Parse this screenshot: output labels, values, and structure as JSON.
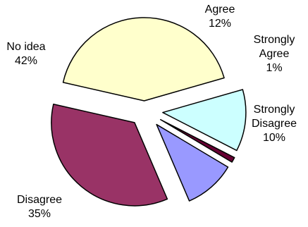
{
  "chart_data": {
    "type": "pie",
    "exploded": true,
    "slices": [
      {
        "label_lines": [
          "Agree",
          "12%"
        ],
        "percent": 12,
        "color": "#ccffff"
      },
      {
        "label_lines": [
          "Strongly",
          "Agree",
          "1%"
        ],
        "percent": 1,
        "color": "#660033"
      },
      {
        "label_lines": [
          "Strongly",
          "Disagree",
          "10%"
        ],
        "percent": 10,
        "color": "#9999ff"
      },
      {
        "label_lines": [
          "Disagree",
          "35%"
        ],
        "percent": 35,
        "color": "#993366"
      },
      {
        "label_lines": [
          "No idea",
          "42%"
        ],
        "percent": 42,
        "color": "#ffffcc"
      }
    ]
  }
}
